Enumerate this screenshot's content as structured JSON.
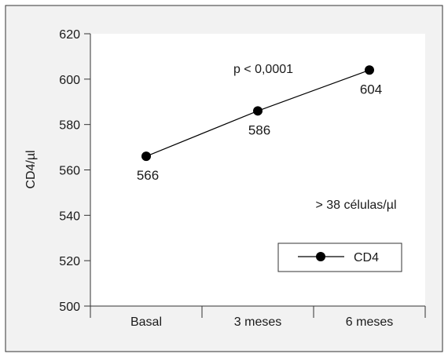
{
  "chart_data": {
    "type": "line",
    "categories": [
      "Basal",
      "3 meses",
      "6 meses"
    ],
    "series": [
      {
        "name": "CD4",
        "values": [
          566,
          586,
          604
        ]
      }
    ],
    "data_labels": [
      "566",
      "586",
      "604"
    ],
    "title": "",
    "xlabel": "",
    "ylabel": "CD4/µl",
    "ylim": [
      500,
      620
    ],
    "yticks": [
      500,
      520,
      540,
      560,
      580,
      600,
      620
    ],
    "annotations": [
      "p < 0,0001",
      "> 38 células/µl"
    ],
    "grid": false,
    "legend_position": "bottom-right"
  },
  "colors": {
    "outer_background": "#f2f2f2",
    "plot_background": "#ffffff",
    "axis": "#333333",
    "series": "#000000"
  }
}
